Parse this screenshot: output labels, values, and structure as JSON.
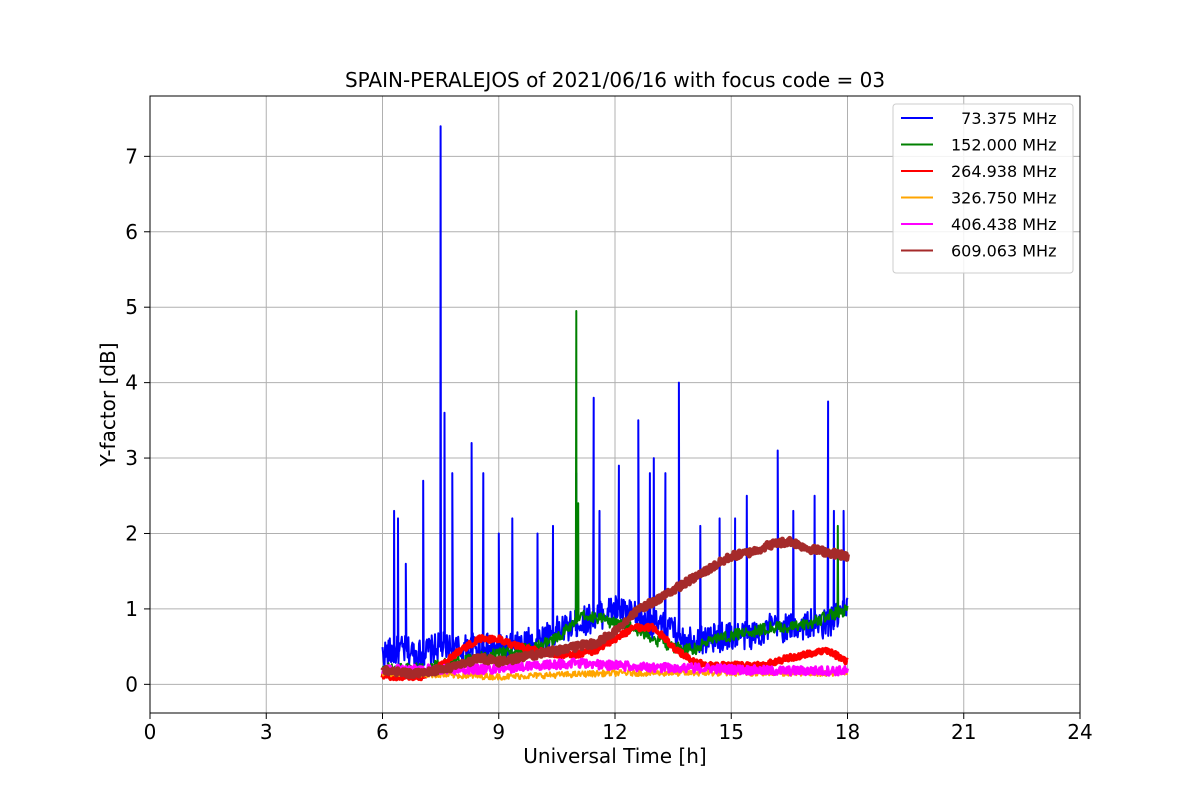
{
  "chart_data": {
    "type": "line",
    "title": "SPAIN-PERALEJOS of 2021/06/16 with focus code = 03",
    "xlabel": "Universal Time [h]",
    "ylabel": "Y-factor [dB]",
    "xlim": [
      0,
      24
    ],
    "ylim": [
      -0.38,
      7.8
    ],
    "xticks": [
      0,
      3,
      6,
      9,
      12,
      15,
      18,
      21,
      24
    ],
    "yticks": [
      0,
      1,
      2,
      3,
      4,
      5,
      6,
      7
    ],
    "grid": true,
    "legend_position": "top-right",
    "series": [
      {
        "name": "  73.375 MHz",
        "color": "#0000ff",
        "width": 2,
        "noise": 0.2,
        "x": [
          6.0,
          6.5,
          7.0,
          7.5,
          8.0,
          8.5,
          9.0,
          9.5,
          10.0,
          10.5,
          11.0,
          11.5,
          12.0,
          12.5,
          13.0,
          13.5,
          14.0,
          14.5,
          15.0,
          15.5,
          16.0,
          16.5,
          17.0,
          17.5,
          18.0
        ],
        "y": [
          0.4,
          0.45,
          0.4,
          0.5,
          0.45,
          0.5,
          0.45,
          0.5,
          0.6,
          0.7,
          0.8,
          0.9,
          1.0,
          0.9,
          0.8,
          0.7,
          0.6,
          0.6,
          0.65,
          0.65,
          0.75,
          0.75,
          0.8,
          0.8,
          1.0
        ],
        "spikes": [
          [
            6.3,
            2.3
          ],
          [
            6.4,
            2.2
          ],
          [
            6.6,
            1.6
          ],
          [
            7.05,
            2.7
          ],
          [
            7.5,
            7.4
          ],
          [
            7.6,
            3.6
          ],
          [
            7.8,
            2.8
          ],
          [
            8.3,
            3.2
          ],
          [
            8.6,
            2.8
          ],
          [
            9.0,
            2.0
          ],
          [
            9.35,
            2.2
          ],
          [
            10.0,
            2.0
          ],
          [
            10.4,
            2.1
          ],
          [
            11.0,
            2.8
          ],
          [
            11.45,
            3.8
          ],
          [
            11.6,
            2.3
          ],
          [
            12.1,
            2.9
          ],
          [
            12.6,
            3.5
          ],
          [
            12.9,
            2.8
          ],
          [
            13.0,
            3.0
          ],
          [
            13.3,
            2.8
          ],
          [
            13.65,
            4.0
          ],
          [
            14.2,
            2.1
          ],
          [
            14.7,
            2.2
          ],
          [
            15.1,
            2.2
          ],
          [
            15.4,
            2.5
          ],
          [
            16.2,
            3.1
          ],
          [
            16.6,
            2.3
          ],
          [
            17.15,
            2.5
          ],
          [
            17.5,
            3.75
          ],
          [
            17.65,
            2.3
          ],
          [
            17.9,
            2.3
          ]
        ]
      },
      {
        "name": "152.000 MHz",
        "color": "#008000",
        "width": 2,
        "noise": 0.08,
        "x": [
          6.0,
          6.5,
          7.0,
          7.5,
          8.0,
          8.5,
          9.0,
          9.5,
          10.0,
          10.5,
          10.9,
          11.2,
          11.5,
          12.0,
          12.5,
          13.0,
          13.5,
          14.0,
          14.5,
          15.0,
          15.5,
          16.0,
          16.5,
          17.0,
          17.5,
          18.0
        ],
        "y": [
          0.2,
          0.2,
          0.2,
          0.25,
          0.3,
          0.35,
          0.4,
          0.45,
          0.5,
          0.6,
          0.8,
          0.9,
          0.9,
          0.8,
          0.75,
          0.6,
          0.5,
          0.45,
          0.6,
          0.65,
          0.7,
          0.75,
          0.75,
          0.8,
          0.9,
          1.0
        ],
        "spikes": [
          [
            11.0,
            4.95
          ],
          [
            11.05,
            2.4
          ],
          [
            17.75,
            2.1
          ]
        ]
      },
      {
        "name": "264.938 MHz",
        "color": "#ff0000",
        "width": 4,
        "noise": 0.04,
        "x": [
          6.0,
          7.0,
          7.5,
          8.0,
          8.5,
          9.0,
          9.5,
          10.0,
          10.5,
          11.0,
          11.5,
          12.0,
          12.5,
          13.0,
          13.5,
          14.0,
          14.5,
          15.0,
          15.5,
          16.0,
          16.5,
          17.0,
          17.5,
          18.0
        ],
        "y": [
          0.1,
          0.1,
          0.25,
          0.45,
          0.6,
          0.6,
          0.5,
          0.45,
          0.4,
          0.4,
          0.45,
          0.6,
          0.75,
          0.75,
          0.5,
          0.3,
          0.25,
          0.25,
          0.25,
          0.28,
          0.35,
          0.4,
          0.45,
          0.3
        ],
        "spikes": []
      },
      {
        "name": "326.750 MHz",
        "color": "#ffa500",
        "width": 2,
        "noise": 0.04,
        "x": [
          6.0,
          9.0,
          12.0,
          15.0,
          18.0
        ],
        "y": [
          0.15,
          0.1,
          0.15,
          0.15,
          0.15
        ],
        "spikes": []
      },
      {
        "name": "406.438 MHz",
        "color": "#ff00ff",
        "width": 3,
        "noise": 0.06,
        "x": [
          6.0,
          7.0,
          8.0,
          9.0,
          10.0,
          11.0,
          12.0,
          13.0,
          14.0,
          15.0,
          16.0,
          17.0,
          18.0
        ],
        "y": [
          0.2,
          0.2,
          0.2,
          0.2,
          0.25,
          0.28,
          0.25,
          0.22,
          0.22,
          0.2,
          0.18,
          0.18,
          0.18
        ],
        "spikes": []
      },
      {
        "name": "609.063 MHz",
        "color": "#a52a2a",
        "width": 5,
        "noise": 0.05,
        "x": [
          6.0,
          6.5,
          7.0,
          7.5,
          8.0,
          8.5,
          9.0,
          9.5,
          10.0,
          10.5,
          11.0,
          11.5,
          12.0,
          12.5,
          13.0,
          13.5,
          14.0,
          14.5,
          15.0,
          15.5,
          16.0,
          16.5,
          17.0,
          17.5,
          18.0
        ],
        "y": [
          0.2,
          0.15,
          0.15,
          0.2,
          0.25,
          0.35,
          0.3,
          0.35,
          0.4,
          0.45,
          0.5,
          0.55,
          0.7,
          0.95,
          1.1,
          1.25,
          1.4,
          1.55,
          1.7,
          1.75,
          1.85,
          1.9,
          1.8,
          1.75,
          1.7
        ],
        "spikes": []
      }
    ]
  }
}
